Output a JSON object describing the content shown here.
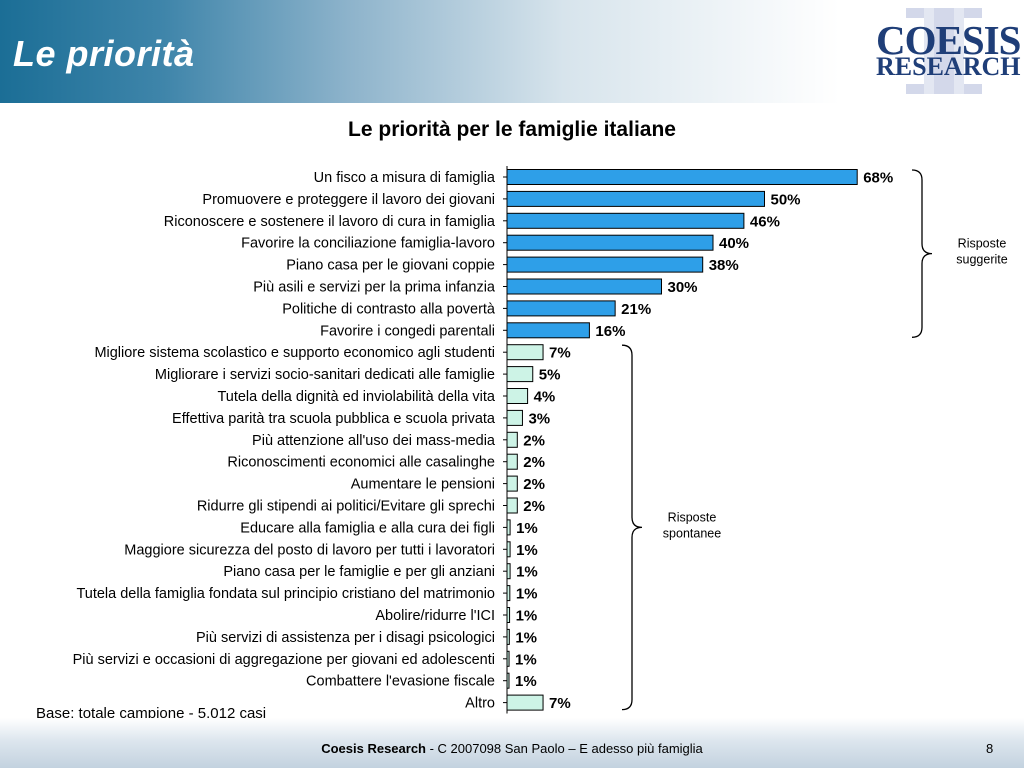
{
  "slide": {
    "title": "Le priorità",
    "page_number": "8"
  },
  "logo": {
    "line1": "COESIS",
    "line2": "RESEARCH"
  },
  "footer": {
    "brand": "Coesis Research",
    "text": " - C 2007098  San Paolo – E adesso più famiglia"
  },
  "base_note": "Base: totale campione - 5.012 casi",
  "colors": {
    "suggested_fill": "#2e9fe8",
    "spontaneous_fill": "#cdf3e6",
    "bar_stroke": "#000000"
  },
  "chart_data": {
    "type": "bar",
    "orientation": "horizontal",
    "title": "Le priorità per le famiglie italiane",
    "value_format": "percent",
    "xlim": [
      0,
      100
    ],
    "categories": [
      "Un fisco a misura di famiglia",
      "Promuovere e proteggere il lavoro dei giovani",
      "Riconoscere e sostenere il lavoro di cura in famiglia",
      "Favorire la conciliazione famiglia-lavoro",
      "Piano casa per le giovani coppie",
      "Più asili e servizi per la prima infanzia",
      "Politiche di contrasto alla povertà",
      "Favorire i congedi parentali",
      "Migliore sistema scolastico e supporto economico agli studenti",
      "Migliorare i servizi socio-sanitari dedicati alle famiglie",
      "Tutela della dignità ed inviolabilità della vita",
      "Effettiva parità tra scuola pubblica e scuola privata",
      "Più attenzione all'uso dei mass-media",
      "Riconoscimenti economici alle casalinghe",
      "Aumentare le pensioni",
      "Ridurre gli stipendi ai politici/Evitare gli sprechi",
      "Educare alla famiglia e alla cura dei figli",
      "Maggiore sicurezza del posto di lavoro per tutti i lavoratori",
      "Piano casa per le famiglie e per gli anziani",
      "Tutela della famiglia fondata sul principio cristiano del matrimonio",
      "Abolire/ridurre l'ICI",
      "Più servizi di assistenza per i disagi psicologici",
      "Più servizi e occasioni di aggregazione per giovani ed adolescenti",
      "Combattere l'evasione fiscale",
      "Altro"
    ],
    "values": [
      68,
      50,
      46,
      40,
      38,
      30,
      21,
      16,
      7,
      5,
      4,
      3,
      2,
      2,
      2,
      2,
      1,
      1,
      1,
      1,
      1,
      1,
      1,
      1,
      7
    ],
    "display_values": [
      1,
      1,
      1,
      1,
      1,
      1,
      1,
      1,
      1,
      1,
      1,
      1,
      1,
      1,
      1,
      1,
      0.6,
      0.6,
      0.6,
      0.55,
      0.5,
      0.45,
      0.4,
      0.3,
      1
    ],
    "groups": [
      {
        "name": "Risposte suggerite",
        "start_index": 0,
        "end_index": 7
      },
      {
        "name": "Risposte spontanee",
        "start_index": 8,
        "end_index": 24
      }
    ]
  }
}
